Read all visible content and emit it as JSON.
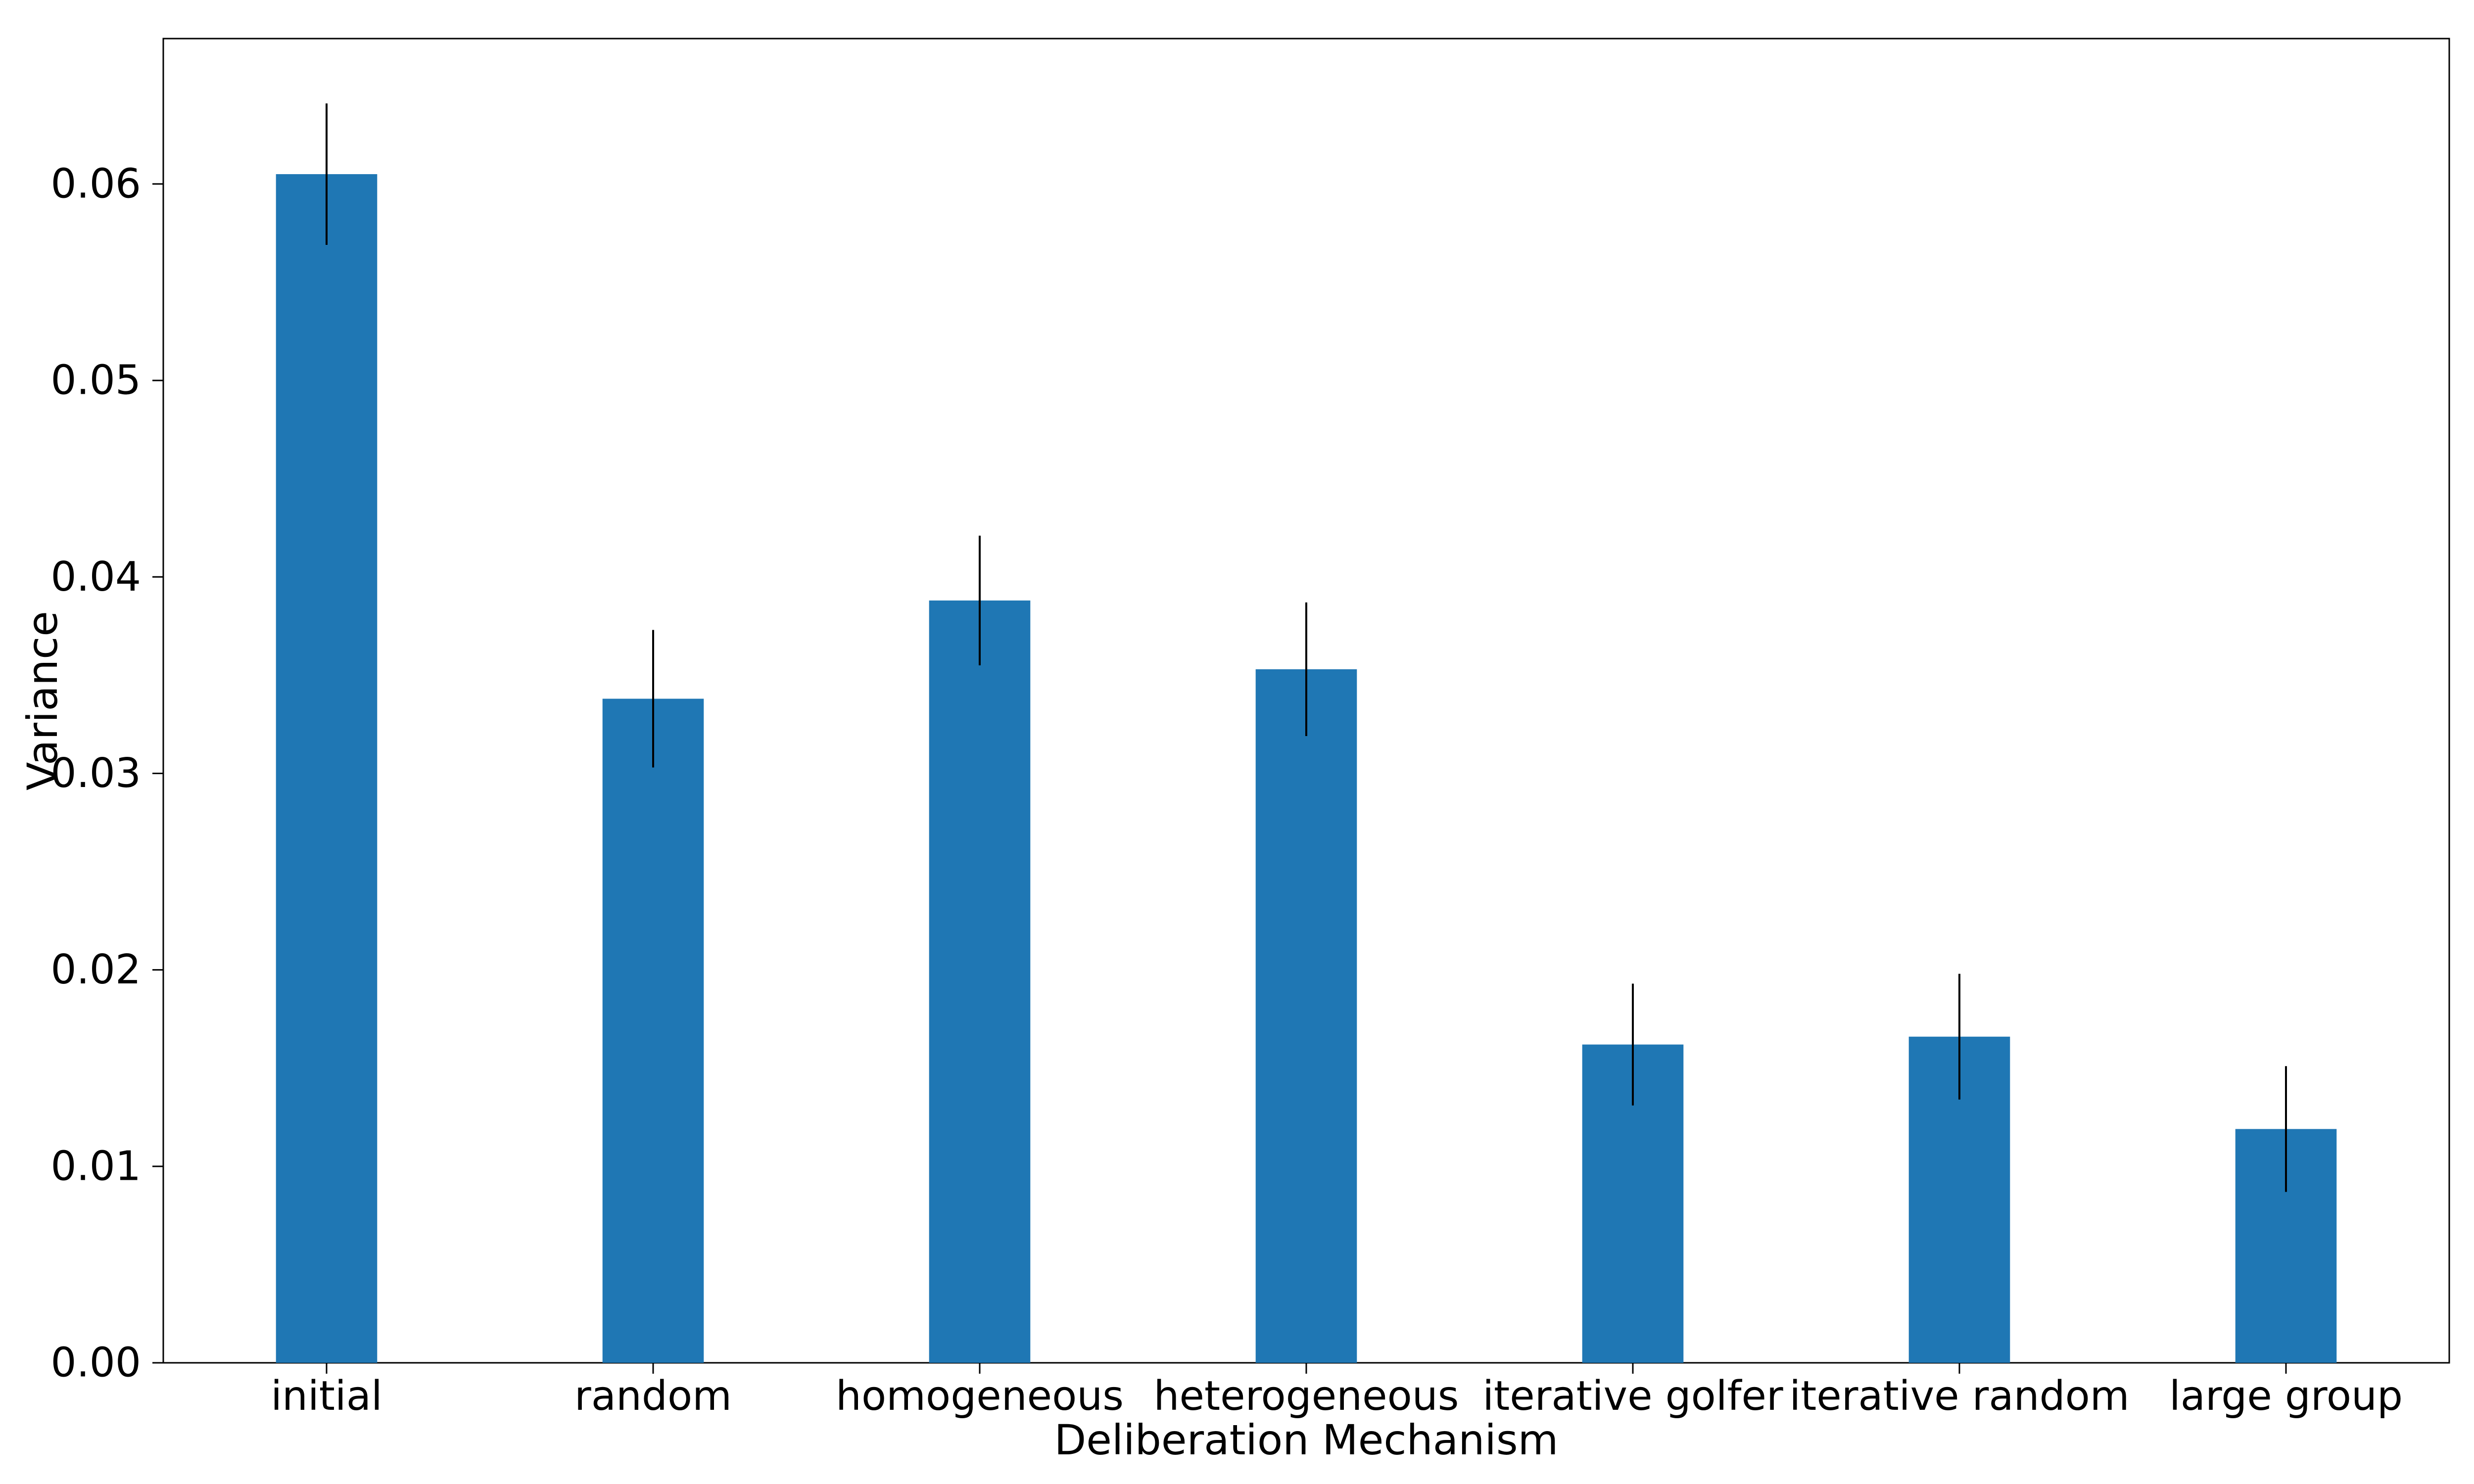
{
  "chart_data": {
    "type": "bar",
    "title": "",
    "xlabel": "Deliberation Mechanism",
    "ylabel": "Variance",
    "categories": [
      "initial",
      "random",
      "homogeneous",
      "heterogeneous",
      "iterative golfer",
      "iterative random",
      "large group"
    ],
    "values": [
      0.0605,
      0.0338,
      0.0388,
      0.0353,
      0.0162,
      0.0166,
      0.0119
    ],
    "error_bars": [
      0.0036,
      0.0035,
      0.0033,
      0.0034,
      0.0031,
      0.0032,
      0.0032
    ],
    "yticks": [
      "0.00",
      "0.01",
      "0.02",
      "0.03",
      "0.04",
      "0.05",
      "0.06"
    ],
    "ylim": [
      0,
      0.0674
    ],
    "bar_color": "#1f77b4",
    "error_bar_color": "#000000",
    "axis_color": "#000000",
    "grid": false,
    "legend": null,
    "frame_on": true
  }
}
